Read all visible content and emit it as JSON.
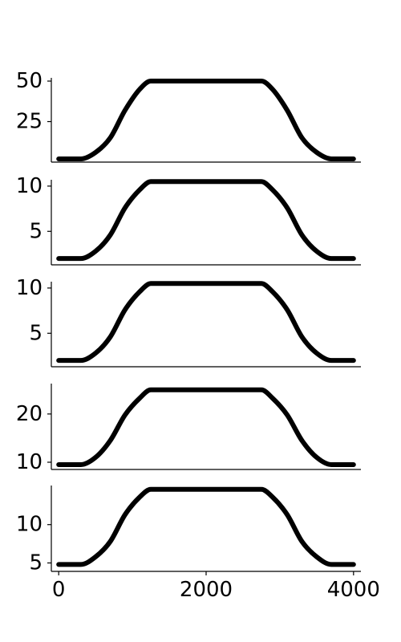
{
  "chart_data": [
    {
      "type": "line",
      "title": "",
      "xlabel": "",
      "ylabel": "",
      "ylim": [
        0,
        52
      ],
      "xlim": [
        -100,
        4100
      ],
      "yticks": [
        25,
        50
      ],
      "ytick_labels": [
        "25",
        "50"
      ],
      "grid": false,
      "series": [
        {
          "x": [
            0,
            300,
            500,
            700,
            900,
            1100,
            1250,
            1500,
            1750,
            2000,
            2250,
            2500,
            2750,
            2900,
            3100,
            3300,
            3500,
            3700,
            4000
          ],
          "values": [
            2,
            2,
            6,
            15,
            32,
            45,
            50,
            50,
            50,
            50,
            50,
            50,
            50,
            45,
            32,
            15,
            6,
            2,
            2
          ]
        }
      ]
    },
    {
      "type": "line",
      "title": "",
      "xlabel": "",
      "ylabel": "",
      "ylim": [
        1.3,
        10.7
      ],
      "xlim": [
        -100,
        4100
      ],
      "yticks": [
        5,
        10
      ],
      "ytick_labels": [
        "5",
        "10"
      ],
      "grid": false,
      "series": [
        {
          "x": [
            0,
            300,
            500,
            700,
            900,
            1100,
            1250,
            1500,
            1750,
            2000,
            2250,
            2500,
            2750,
            2900,
            3100,
            3300,
            3500,
            3700,
            4000
          ],
          "values": [
            2,
            2,
            2.8,
            4.6,
            7.6,
            9.6,
            10.5,
            10.5,
            10.5,
            10.5,
            10.5,
            10.5,
            10.5,
            9.6,
            7.6,
            4.6,
            2.8,
            2,
            2
          ]
        }
      ]
    },
    {
      "type": "line",
      "title": "",
      "xlabel": "",
      "ylabel": "",
      "ylim": [
        1.3,
        10.7
      ],
      "xlim": [
        -100,
        4100
      ],
      "yticks": [
        5,
        10
      ],
      "ytick_labels": [
        "5",
        "10"
      ],
      "grid": false,
      "series": [
        {
          "x": [
            0,
            300,
            500,
            700,
            900,
            1100,
            1250,
            1500,
            1750,
            2000,
            2250,
            2500,
            2750,
            2900,
            3100,
            3300,
            3500,
            3700,
            4000
          ],
          "values": [
            2,
            2,
            2.8,
            4.6,
            7.6,
            9.6,
            10.5,
            10.5,
            10.5,
            10.5,
            10.5,
            10.5,
            10.5,
            9.6,
            7.6,
            4.6,
            2.8,
            2,
            2
          ]
        }
      ]
    },
    {
      "type": "line",
      "title": "",
      "xlabel": "",
      "ylabel": "",
      "ylim": [
        8.5,
        26.3
      ],
      "xlim": [
        -100,
        4100
      ],
      "yticks": [
        10,
        20
      ],
      "ytick_labels": [
        "10",
        "20"
      ],
      "grid": false,
      "series": [
        {
          "x": [
            0,
            300,
            500,
            700,
            900,
            1100,
            1250,
            1500,
            1750,
            2000,
            2250,
            2500,
            2750,
            2900,
            3100,
            3300,
            3500,
            3700,
            4000
          ],
          "values": [
            9.5,
            9.5,
            11,
            14.5,
            19.8,
            23.3,
            25,
            25,
            25,
            25,
            25,
            25,
            25,
            23.3,
            19.8,
            14.5,
            11,
            9.5,
            9.5
          ]
        }
      ]
    },
    {
      "type": "line",
      "title": "",
      "xlabel": "",
      "ylabel": "",
      "ylim": [
        3.9,
        15.1
      ],
      "xlim": [
        -100,
        4100
      ],
      "yticks": [
        5,
        10
      ],
      "ytick_labels": [
        "5",
        "10"
      ],
      "xticks": [
        0,
        2000,
        4000
      ],
      "xtick_labels": [
        "0",
        "2000",
        "4000"
      ],
      "grid": false,
      "series": [
        {
          "x": [
            0,
            300,
            500,
            700,
            900,
            1100,
            1250,
            1500,
            1750,
            2000,
            2250,
            2500,
            2750,
            2900,
            3100,
            3300,
            3500,
            3700,
            4000
          ],
          "values": [
            4.8,
            4.8,
            5.8,
            7.8,
            11.3,
            13.6,
            14.6,
            14.6,
            14.6,
            14.6,
            14.6,
            14.6,
            14.6,
            13.6,
            11.3,
            7.8,
            5.8,
            4.8,
            4.8
          ]
        }
      ]
    }
  ]
}
